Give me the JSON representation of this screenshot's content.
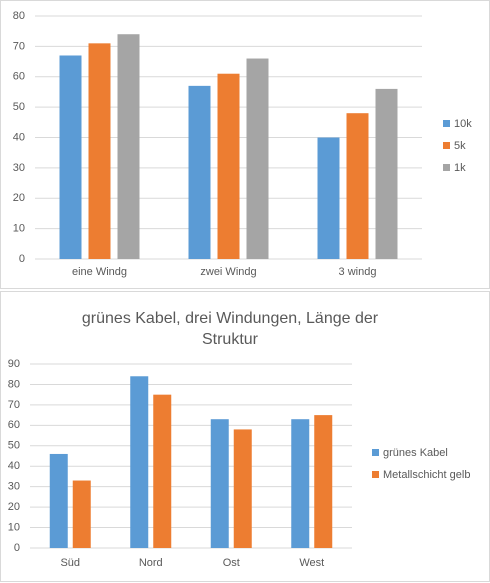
{
  "chart_data": [
    {
      "type": "bar",
      "categories": [
        "eine Windg",
        "zwei Windg",
        "3 windg"
      ],
      "series": [
        {
          "name": "10k",
          "color": "#5b9bd5",
          "values": [
            67,
            57,
            40
          ]
        },
        {
          "name": "5k",
          "color": "#ed7d31",
          "values": [
            71,
            61,
            48
          ]
        },
        {
          "name": "1k",
          "color": "#a5a5a5",
          "values": [
            74,
            66,
            56
          ]
        }
      ],
      "ylim": [
        0,
        80
      ],
      "yticks": [
        0,
        10,
        20,
        30,
        40,
        50,
        60,
        70,
        80
      ],
      "grid": true,
      "legend": "right"
    },
    {
      "type": "bar",
      "title": "grünes Kabel, drei Windungen, Länge der Struktur",
      "categories": [
        "Süd",
        "Nord",
        "Ost",
        "West"
      ],
      "series": [
        {
          "name": "grünes Kabel",
          "color": "#5b9bd5",
          "values": [
            46,
            84,
            63,
            63
          ]
        },
        {
          "name": "Metallschicht gelb",
          "color": "#ed7d31",
          "values": [
            33,
            75,
            58,
            65
          ]
        }
      ],
      "ylim": [
        0,
        90
      ],
      "yticks": [
        0,
        10,
        20,
        30,
        40,
        50,
        60,
        70,
        80,
        90
      ],
      "grid": true,
      "legend": "right"
    }
  ]
}
